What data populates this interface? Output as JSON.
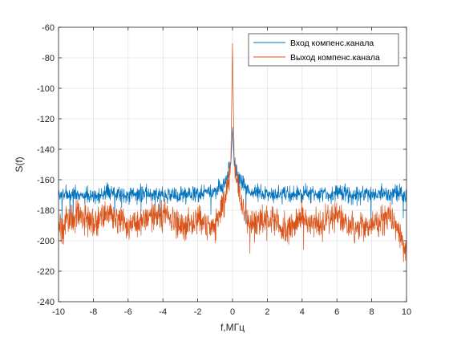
{
  "chart_data": {
    "type": "line",
    "xlabel": "f,МГц",
    "ylabel": "S(f)",
    "xlim": [
      -10,
      10
    ],
    "ylim": [
      -240,
      -60
    ],
    "xticks": [
      -10,
      -8,
      -6,
      -4,
      -2,
      0,
      2,
      4,
      6,
      8,
      10
    ],
    "yticks": [
      -240,
      -220,
      -200,
      -180,
      -160,
      -140,
      -120,
      -100,
      -80,
      -60
    ],
    "grid": true,
    "legend_position": "top-right",
    "series": [
      {
        "name": "Вход компенс.канала",
        "color": "#0072BD",
        "x": [
          -10,
          -9,
          -8,
          -7,
          -6,
          -5,
          -4,
          -3,
          -2,
          -1,
          -0.5,
          -0.1,
          0,
          0.1,
          0.5,
          1,
          2,
          3,
          4,
          5,
          6,
          7,
          8,
          9,
          10
        ],
        "values": [
          -170,
          -169,
          -171,
          -168,
          -170,
          -169,
          -170,
          -170,
          -169,
          -168,
          -163,
          -150,
          -125,
          -150,
          -163,
          -168,
          -169,
          -170,
          -169,
          -170,
          -169,
          -170,
          -170,
          -169,
          -170
        ]
      },
      {
        "name": "Выход компенс.канала",
        "color": "#D95319",
        "x": [
          -10,
          -9,
          -8,
          -7,
          -6,
          -5,
          -4,
          -3,
          -2,
          -1,
          -0.5,
          -0.1,
          0,
          0.1,
          0.5,
          1,
          2,
          3,
          4,
          5,
          6,
          7,
          8,
          9,
          10
        ],
        "values": [
          -193,
          -183,
          -188,
          -180,
          -192,
          -185,
          -182,
          -192,
          -186,
          -190,
          -175,
          -150,
          -72,
          -150,
          -175,
          -190,
          -184,
          -192,
          -185,
          -190,
          -183,
          -192,
          -190,
          -183,
          -205
        ]
      }
    ]
  }
}
